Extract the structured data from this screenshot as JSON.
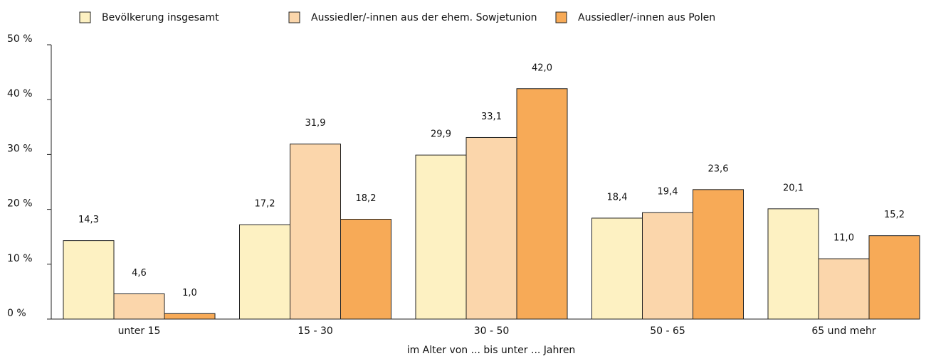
{
  "chart_data": {
    "type": "bar",
    "x_label": "im Alter von ... bis unter ... Jahren",
    "categories": [
      "unter 15",
      "15 - 30",
      "30 - 50",
      "50 - 65",
      "65 und mehr"
    ],
    "series": [
      {
        "name": "Bevölkerung insgesamt",
        "color": "#fdf1c2",
        "values": [
          14.3,
          17.2,
          29.9,
          18.4,
          20.1
        ],
        "value_labels": [
          "14,3",
          "17,2",
          "29,9",
          "18,4",
          "20,1"
        ]
      },
      {
        "name": "Aussiedler/-innen aus der ehem. Sowjetunion",
        "color": "#fbd6ab",
        "values": [
          4.6,
          31.9,
          33.1,
          19.4,
          11.0
        ],
        "value_labels": [
          "4,6",
          "31,9",
          "33,1",
          "19,4",
          "11,0"
        ]
      },
      {
        "name": "Aussiedler/-innen aus Polen",
        "color": "#f7aa57",
        "values": [
          1.0,
          18.2,
          42.0,
          23.6,
          15.2
        ],
        "value_labels": [
          "1,0",
          "18,2",
          "42,0",
          "23,6",
          "15,2"
        ]
      }
    ],
    "ylim": [
      0,
      50
    ],
    "yticks": [
      {
        "value": 0,
        "label": "0 %"
      },
      {
        "value": 10,
        "label": "10 %"
      },
      {
        "value": 20,
        "label": "20 %"
      },
      {
        "value": 30,
        "label": "30 %"
      },
      {
        "value": 40,
        "label": "40 %"
      },
      {
        "value": 50,
        "label": "50 %"
      }
    ],
    "legend": "top"
  }
}
